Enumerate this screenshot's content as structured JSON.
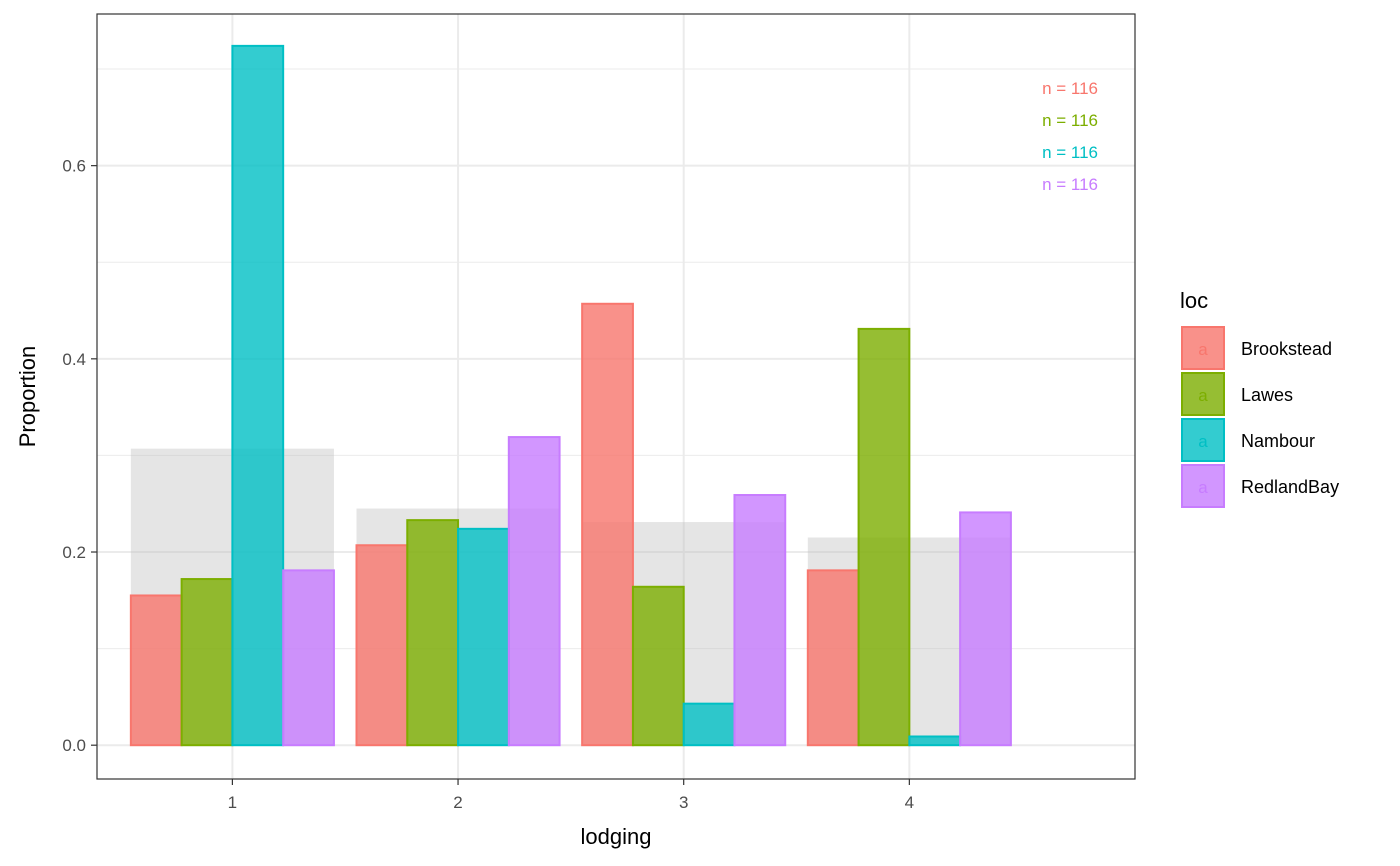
{
  "chart_data": {
    "type": "bar",
    "xlabel": "lodging",
    "ylabel": "Proportion",
    "categories": [
      "1",
      "2",
      "3",
      "4"
    ],
    "x_ticks": [
      "1",
      "2",
      "3",
      "4"
    ],
    "y_ticks": [
      "0.0",
      "0.2",
      "0.4",
      "0.6"
    ],
    "ylim": [
      -0.035,
      0.757
    ],
    "grid": true,
    "legend": {
      "title": "loc",
      "position": "right",
      "key_letter": "a"
    },
    "series": [
      {
        "name": "Brookstead",
        "color": "#F8766D",
        "values": [
          0.155,
          0.207,
          0.457,
          0.181
        ]
      },
      {
        "name": "Lawes",
        "color": "#7CAE00",
        "values": [
          0.172,
          0.233,
          0.164,
          0.431
        ]
      },
      {
        "name": "Nambour",
        "color": "#00BFC4",
        "values": [
          0.724,
          0.224,
          0.043,
          0.009
        ]
      },
      {
        "name": "RedlandBay",
        "color": "#C77CFF",
        "values": [
          0.181,
          0.319,
          0.259,
          0.241
        ]
      }
    ],
    "background_bars": {
      "color": "#bdbdbd",
      "values": [
        0.307,
        0.245,
        0.231,
        0.215
      ]
    },
    "annotations": [
      {
        "text": "n = 116",
        "color": "#F8766D"
      },
      {
        "text": "n = 116",
        "color": "#7CAE00"
      },
      {
        "text": "n = 116",
        "color": "#00BFC4"
      },
      {
        "text": "n = 116",
        "color": "#C77CFF"
      }
    ]
  }
}
